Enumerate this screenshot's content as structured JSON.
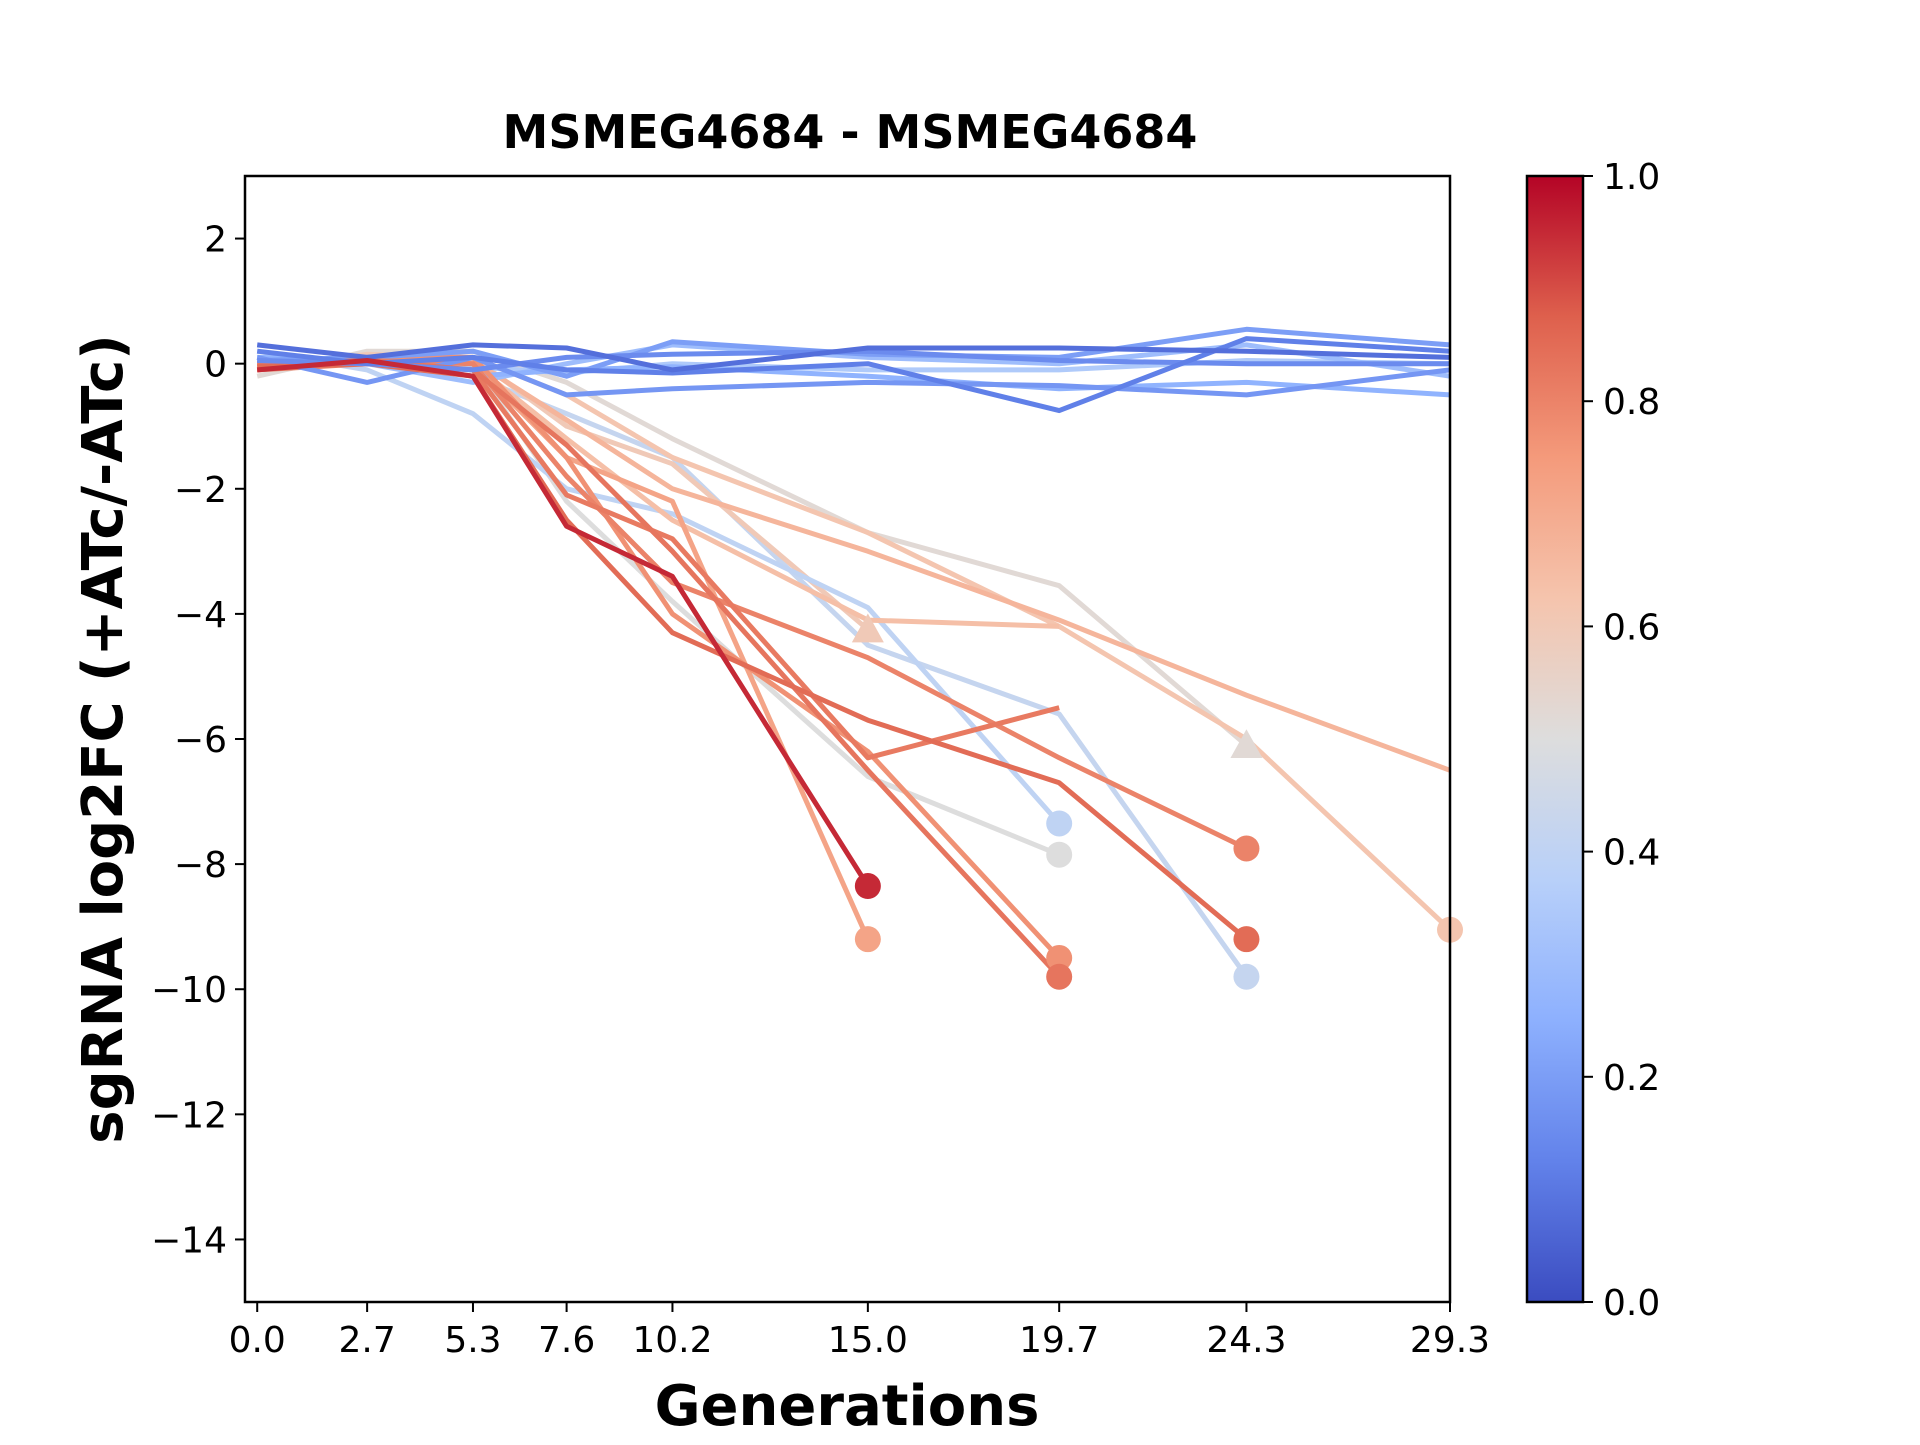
{
  "chart_data": {
    "type": "line",
    "title": "MSMEG4684 - MSMEG4684",
    "xlabel": "Generations",
    "ylabel": "sgRNA log2FC (+ATc/-ATc)",
    "xlim": [
      -0.3,
      29.3
    ],
    "ylim": [
      -15,
      3
    ],
    "x_ticks": [
      0.0,
      2.7,
      5.3,
      7.6,
      10.2,
      15.0,
      19.7,
      24.3,
      29.3
    ],
    "x_tick_labels": [
      "0.0",
      "2.7",
      "5.3",
      "7.6",
      "10.2",
      "15.0",
      "19.7",
      "24.3",
      "29.3"
    ],
    "y_ticks": [
      2,
      0,
      -2,
      -4,
      -6,
      -8,
      -10,
      -12,
      -14
    ],
    "y_tick_labels": [
      "2",
      "0",
      "−2",
      "−4",
      "−6",
      "−8",
      "−10",
      "−12",
      "−14"
    ],
    "grid": false,
    "colorbar": {
      "colormap": "coolwarm",
      "range": [
        0.0,
        1.0
      ],
      "ticks": [
        1.0,
        0.8,
        0.6,
        0.4,
        0.2,
        0.0
      ],
      "tick_labels": [
        "1.0",
        "0.8",
        "0.6",
        "0.4",
        "0.2",
        "0.0"
      ]
    },
    "series": [
      {
        "c": 0.95,
        "x": [
          0,
          2.7,
          5.3,
          7.6,
          10.2,
          15.0
        ],
        "y": [
          -0.1,
          0.05,
          -0.2,
          -2.6,
          -3.4,
          -8.35
        ],
        "end_marker": "circle"
      },
      {
        "c": 0.72,
        "x": [
          0,
          2.7,
          5.3,
          7.6,
          10.2,
          15.0
        ],
        "y": [
          -0.05,
          0.1,
          0.0,
          -1.5,
          -2.2,
          -9.2
        ],
        "end_marker": "circle"
      },
      {
        "c": 0.82,
        "x": [
          0,
          2.7,
          5.3,
          7.6,
          10.2,
          15.0,
          19.7
        ],
        "y": [
          -0.1,
          0.0,
          -0.1,
          -2.1,
          -2.8,
          -6.3,
          -5.5
        ]
      },
      {
        "c": 0.83,
        "x": [
          0,
          2.7,
          5.3,
          7.6,
          10.2,
          15.0,
          19.7
        ],
        "y": [
          0.0,
          0.05,
          -0.1,
          -1.3,
          -3.0,
          -6.5,
          -9.8
        ],
        "end_marker": "circle"
      },
      {
        "c": 0.77,
        "x": [
          0,
          2.7,
          5.3,
          7.6,
          10.2,
          15.0,
          19.7
        ],
        "y": [
          0.0,
          0.1,
          0.1,
          -1.5,
          -4.0,
          -6.2,
          -9.5
        ],
        "end_marker": "circle"
      },
      {
        "c": 0.85,
        "x": [
          0,
          2.7,
          5.3,
          7.6,
          10.2,
          15.0,
          19.7,
          24.3
        ],
        "y": [
          -0.05,
          0.0,
          -0.2,
          -2.5,
          -4.3,
          -5.7,
          -6.7,
          -9.2
        ],
        "end_marker": "circle"
      },
      {
        "c": 0.8,
        "x": [
          0,
          2.7,
          5.3,
          7.6,
          10.2,
          15.0,
          19.7,
          24.3
        ],
        "y": [
          -0.1,
          0.05,
          0.0,
          -1.8,
          -3.5,
          -4.7,
          -6.3,
          -7.75
        ],
        "end_marker": "circle"
      },
      {
        "c": 0.62,
        "x": [
          0,
          2.7,
          5.3,
          7.6,
          10.2,
          15.0,
          19.7,
          24.3,
          29.3
        ],
        "y": [
          -0.1,
          0.1,
          0.1,
          -0.5,
          -1.5,
          -2.7,
          -4.2,
          -6.0,
          -9.05
        ],
        "end_marker": "circle"
      },
      {
        "c": 0.67,
        "x": [
          0,
          2.7,
          5.3,
          7.6,
          10.2,
          15.0,
          19.7,
          24.3,
          29.3
        ],
        "y": [
          -0.1,
          0.1,
          0.05,
          -0.9,
          -2.0,
          -3.0,
          -4.1,
          -5.3,
          -6.5
        ]
      },
      {
        "c": 0.52,
        "x": [
          0,
          2.7,
          5.3,
          7.6,
          10.2,
          15.0,
          19.7,
          24.3
        ],
        "y": [
          -0.2,
          0.2,
          0.2,
          -0.3,
          -1.2,
          -2.7,
          -3.55,
          -6.1
        ],
        "end_marker": "triangle"
      },
      {
        "c": 0.6,
        "x": [
          0,
          2.7,
          5.3,
          7.6,
          10.2,
          15.0
        ],
        "y": [
          -0.1,
          0.15,
          0.1,
          -1.0,
          -1.6,
          -4.25
        ],
        "end_marker": "triangle"
      },
      {
        "c": 0.64,
        "x": [
          0,
          2.7,
          5.3,
          7.6,
          10.2,
          15.0,
          19.7
        ],
        "y": [
          -0.1,
          0.1,
          0.0,
          -1.2,
          -2.5,
          -4.1,
          -4.2
        ]
      },
      {
        "c": 0.5,
        "x": [
          0,
          2.7,
          5.3,
          7.6,
          10.2,
          15.0,
          19.7
        ],
        "y": [
          0.0,
          0.1,
          0.0,
          -2.2,
          -3.8,
          -6.6,
          -7.85
        ],
        "end_marker": "circle"
      },
      {
        "c": 0.4,
        "x": [
          0,
          2.7,
          5.3,
          7.6,
          10.2,
          15.0,
          19.7
        ],
        "y": [
          0.2,
          -0.1,
          -0.8,
          -2.0,
          -2.4,
          -3.9,
          -7.35
        ],
        "end_marker": "circle"
      },
      {
        "c": 0.42,
        "x": [
          0,
          2.7,
          5.3,
          7.6,
          10.2,
          15.0,
          19.7,
          24.3
        ],
        "y": [
          0.1,
          0.0,
          -0.2,
          -0.8,
          -1.5,
          -4.5,
          -5.6,
          -9.8
        ],
        "end_marker": "circle"
      },
      {
        "c": 0.08,
        "x": [
          0,
          2.7,
          5.3,
          7.6,
          10.2,
          15.0,
          19.7,
          24.3,
          29.3
        ],
        "y": [
          0.3,
          0.1,
          0.3,
          0.25,
          -0.1,
          0.25,
          0.25,
          0.2,
          0.1
        ]
      },
      {
        "c": 0.12,
        "x": [
          0,
          2.7,
          5.3,
          7.6,
          10.2,
          15.0,
          19.7,
          24.3,
          29.3
        ],
        "y": [
          0.2,
          0.0,
          0.1,
          -0.1,
          -0.15,
          0.0,
          -0.75,
          0.4,
          0.2
        ]
      },
      {
        "c": 0.18,
        "x": [
          0,
          2.7,
          5.3,
          7.6,
          10.2,
          15.0,
          19.7,
          24.3,
          29.3
        ],
        "y": [
          0.1,
          -0.3,
          0.1,
          -0.5,
          -0.4,
          -0.3,
          -0.35,
          -0.5,
          -0.1
        ]
      },
      {
        "c": 0.2,
        "x": [
          0,
          2.7,
          5.3,
          7.6,
          10.2,
          15.0,
          19.7,
          24.3,
          29.3
        ],
        "y": [
          0.05,
          0.1,
          0.2,
          -0.2,
          0.35,
          0.15,
          0.1,
          0.55,
          0.3
        ]
      },
      {
        "c": 0.26,
        "x": [
          0,
          2.7,
          5.3,
          7.6,
          10.2,
          15.0,
          19.7,
          24.3,
          29.3
        ],
        "y": [
          0.1,
          0.05,
          -0.2,
          -0.1,
          -0.05,
          -0.2,
          -0.4,
          -0.3,
          -0.5
        ]
      },
      {
        "c": 0.15,
        "x": [
          0,
          2.7,
          5.3,
          7.6,
          10.2,
          15.0,
          19.7,
          24.3,
          29.3
        ],
        "y": [
          0.05,
          0.0,
          -0.1,
          0.1,
          0.15,
          0.2,
          0.05,
          0.0,
          0.0
        ]
      },
      {
        "c": 0.3,
        "x": [
          0,
          2.7,
          5.3,
          7.6,
          10.2,
          15.0,
          19.7,
          24.3,
          29.3
        ],
        "y": [
          0.1,
          0.0,
          -0.3,
          0.0,
          0.3,
          0.1,
          0.0,
          0.3,
          -0.2
        ]
      },
      {
        "c": 0.35,
        "x": [
          0,
          2.7,
          5.3,
          7.6,
          10.2,
          15.0,
          19.7,
          24.3,
          29.3
        ],
        "y": [
          0.0,
          0.05,
          -0.05,
          -0.15,
          0.0,
          -0.1,
          -0.1,
          0.05,
          0.0
        ]
      }
    ]
  }
}
